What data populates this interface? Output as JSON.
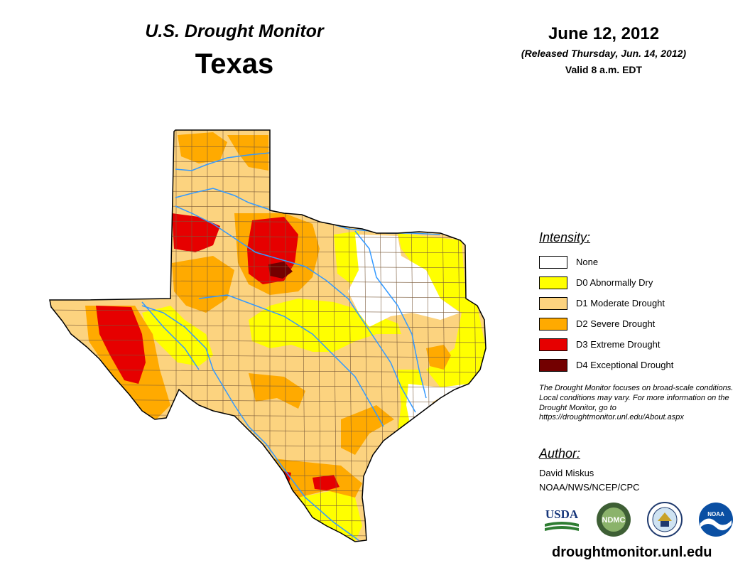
{
  "header": {
    "title": "U.S. Drought Monitor",
    "state": "Texas",
    "date": "June 12, 2012",
    "released": "(Released Thursday, Jun. 14, 2012)",
    "valid": "Valid 8 a.m. EDT"
  },
  "legend": {
    "title": "Intensity:",
    "items": [
      {
        "label": "None",
        "color": "#ffffff"
      },
      {
        "label": "D0 Abnormally Dry",
        "color": "#ffff00"
      },
      {
        "label": "D1 Moderate Drought",
        "color": "#fcd37f"
      },
      {
        "label": "D2 Severe Drought",
        "color": "#ffaa00"
      },
      {
        "label": "D3 Extreme Drought",
        "color": "#e60000"
      },
      {
        "label": "D4 Exceptional Drought",
        "color": "#730000"
      }
    ]
  },
  "note": "The Drought Monitor focuses on broad-scale conditions. Local conditions may vary. For more information on the Drought Monitor, go to https://droughtmonitor.unl.edu/About.aspx",
  "author": {
    "title": "Author:",
    "name": "David Miskus",
    "org": "NOAA/NWS/NCEP/CPC"
  },
  "logos": {
    "usda": "USDA",
    "ndmc": "NDMC",
    "noaa": "NOAA"
  },
  "website": "droughtmonitor.unl.edu",
  "colors": {
    "river": "#3399ff",
    "border": "#000000",
    "county_line": "#7a5a3a"
  }
}
